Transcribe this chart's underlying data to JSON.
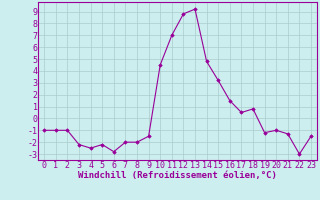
{
  "x": [
    0,
    1,
    2,
    3,
    4,
    5,
    6,
    7,
    8,
    9,
    10,
    11,
    12,
    13,
    14,
    15,
    16,
    17,
    18,
    19,
    20,
    21,
    22,
    23
  ],
  "y": [
    -1,
    -1,
    -1,
    -2.2,
    -2.5,
    -2.2,
    -2.8,
    -2,
    -2,
    -1.5,
    4.5,
    7,
    8.8,
    9.2,
    4.8,
    3.2,
    1.5,
    0.5,
    0.8,
    -1.2,
    -1,
    -1.3,
    -3,
    -1.5
  ],
  "line_color": "#990099",
  "marker": "D",
  "marker_size": 1.8,
  "bg_color": "#cceeee",
  "grid_color": "#aacccc",
  "xlabel": "Windchill (Refroidissement éolien,°C)",
  "yticks": [
    -3,
    -2,
    -1,
    0,
    1,
    2,
    3,
    4,
    5,
    6,
    7,
    8,
    9
  ],
  "ylim": [
    -3.5,
    9.8
  ],
  "xlim": [
    -0.5,
    23.5
  ],
  "xlabel_fontsize": 6.5,
  "tick_fontsize": 6.0,
  "linewidth": 0.8
}
